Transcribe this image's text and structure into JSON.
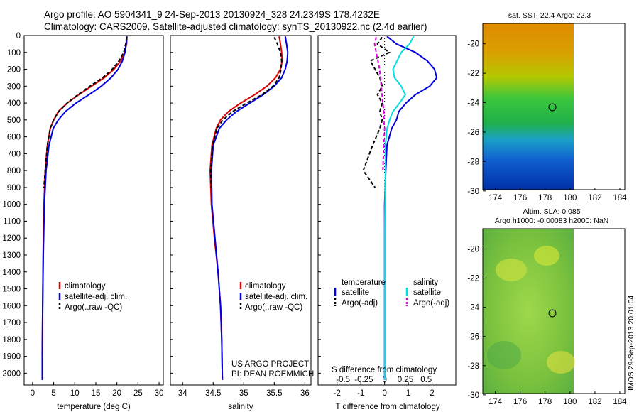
{
  "header": {
    "line1": "Argo profile: AO 5904341_9 24-Sep-2013 20130924_328 24.2349S 178.4232E",
    "line2": "Climatology: CARS2009. Satellite-adjusted climatology: synTS_20130922.nc (2.4d earlier)"
  },
  "sst_title": "sat. SST: 22.4 Argo: 22.3",
  "sla_title1": "Altim. SLA: 0.085",
  "sla_title2": "Argo h1000: -0.00083 h2000: NaN",
  "side_stamp": "IMOS 29-Sep-2013 20:01:04",
  "project": {
    "line1": "US ARGO PROJECT",
    "line2": "PI: DEAN ROEMMICH"
  },
  "depth_ticks": [
    "0",
    "100",
    "200",
    "300",
    "400",
    "500",
    "600",
    "700",
    "800",
    "900",
    "1000",
    "1100",
    "1200",
    "1300",
    "1400",
    "1500",
    "1600",
    "1700",
    "1800",
    "1900",
    "2000"
  ],
  "colors": {
    "climatology": "#e00000",
    "satellite": "#0000e0",
    "argo": "#000000",
    "sal_satellite": "#00e0e0",
    "sal_argo": "#e000e0"
  },
  "chart_data": [
    {
      "type": "line",
      "xlabel": "temperature (deg C)",
      "ylabel": "",
      "xlim": [
        -2,
        31
      ],
      "ylim": [
        2070,
        0
      ],
      "xticks": [
        "0",
        "5",
        "10",
        "15",
        "20",
        "25",
        "30"
      ],
      "legend": [
        "climatology",
        "satellite-adj. clim.",
        "Argo(..raw -QC)"
      ],
      "series": [
        {
          "name": "climatology",
          "x": [
            22.4,
            22.3,
            21.8,
            20.9,
            19.3,
            17,
            14,
            11,
            8.2,
            6.1,
            5,
            4.2,
            3.5,
            3,
            2.7,
            2.5,
            2.4,
            2.3,
            2.3
          ],
          "y": [
            5,
            50,
            100,
            150,
            200,
            250,
            300,
            350,
            400,
            450,
            500,
            550,
            650,
            800,
            1000,
            1300,
            1600,
            1900,
            2040
          ]
        },
        {
          "name": "satellite-adj. clim.",
          "x": [
            22.3,
            22.2,
            21.9,
            21.3,
            20.3,
            18.6,
            16.3,
            13.4,
            10.3,
            7.8,
            6.1,
            4.9,
            3.9,
            3.2,
            2.8,
            2.55,
            2.4,
            2.3,
            2.3
          ],
          "y": [
            5,
            50,
            100,
            150,
            200,
            250,
            300,
            350,
            400,
            450,
            500,
            550,
            650,
            800,
            1000,
            1300,
            1600,
            1900,
            2040
          ]
        },
        {
          "name": "Argo(..raw -QC)",
          "x": [
            22.3,
            22.1,
            21.6,
            20.5,
            18.9,
            16.6,
            13.6,
            10.8,
            8.2,
            6.2,
            5,
            4.2,
            3.5,
            3,
            2.7
          ],
          "y": [
            10,
            50,
            100,
            150,
            200,
            250,
            300,
            350,
            400,
            450,
            500,
            550,
            650,
            800,
            900
          ]
        }
      ]
    },
    {
      "type": "line",
      "xlabel": "salinity",
      "ylabel": "",
      "xlim": [
        33.8,
        36.1
      ],
      "ylim": [
        2070,
        0
      ],
      "xticks": [
        "34",
        "34.5",
        "35",
        "35.5",
        "36"
      ],
      "legend": [
        "climatology",
        "satellite-adj. clim.",
        "Argo(..raw -QC)"
      ],
      "series": [
        {
          "name": "climatology",
          "x": [
            35.58,
            35.6,
            35.62,
            35.63,
            35.6,
            35.52,
            35.38,
            35.18,
            34.95,
            34.75,
            34.62,
            34.55,
            34.48,
            34.45,
            34.47,
            34.52,
            34.58,
            34.62,
            34.64,
            34.65
          ],
          "y": [
            5,
            50,
            100,
            150,
            200,
            250,
            300,
            350,
            400,
            450,
            500,
            550,
            650,
            800,
            1000,
            1200,
            1400,
            1600,
            1800,
            2040
          ]
        },
        {
          "name": "satellite-adj. clim.",
          "x": [
            35.68,
            35.7,
            35.72,
            35.71,
            35.68,
            35.62,
            35.5,
            35.32,
            35.1,
            34.88,
            34.72,
            34.6,
            34.5,
            34.47,
            34.48,
            34.53,
            34.58,
            34.62,
            34.64,
            34.65
          ],
          "y": [
            5,
            50,
            100,
            150,
            200,
            250,
            300,
            350,
            400,
            450,
            500,
            550,
            650,
            800,
            1000,
            1200,
            1400,
            1600,
            1800,
            2040
          ]
        },
        {
          "name": "Argo(..raw -QC)",
          "x": [
            35.5,
            35.55,
            35.6,
            35.62,
            35.61,
            35.58,
            35.48,
            35.3,
            35.05,
            34.82,
            34.66,
            34.56,
            34.49,
            34.46,
            34.47
          ],
          "y": [
            10,
            50,
            100,
            150,
            200,
            250,
            300,
            350,
            400,
            450,
            500,
            550,
            650,
            800,
            900
          ]
        }
      ]
    },
    {
      "type": "line",
      "xlabel": "T difference from climatology",
      "xlabel2": "S difference from climatology",
      "ylabel": "",
      "xlim": [
        -2.8,
        3
      ],
      "ylim": [
        2070,
        0
      ],
      "xticks": [
        "-2",
        "-1",
        "0",
        "1",
        "2"
      ],
      "xticks2": [
        "-0.5",
        "-0.25",
        "0",
        "0.25",
        "0.5"
      ],
      "legend_left": {
        "title": "temperature",
        "items": [
          "satellite",
          "Argo(-adj)"
        ]
      },
      "legend_right": {
        "title": "salinity",
        "items": [
          "satellite",
          "Argo(-adj)"
        ]
      },
      "series": [
        {
          "name": "temperature satellite",
          "x": [
            0.1,
            0.5,
            1.3,
            1.8,
            2.1,
            2.2,
            1.9,
            1.3,
            0.9,
            0.6,
            0.5,
            0.3,
            0.1,
            0.05,
            0,
            0,
            0
          ],
          "y": [
            5,
            50,
            100,
            150,
            200,
            250,
            300,
            350,
            400,
            450,
            500,
            550,
            650,
            800,
            1000,
            1500,
            2040
          ]
        },
        {
          "name": "temperature Argo(-adj)",
          "x": [
            -0.1,
            -0.3,
            0.2,
            -0.6,
            -0.4,
            -0.2,
            -0.1,
            -0.3,
            -0.1,
            -0.2,
            -0.1,
            -0.2,
            -0.5,
            -0.9,
            -0.4
          ],
          "y": [
            10,
            50,
            100,
            150,
            200,
            250,
            300,
            350,
            400,
            450,
            500,
            550,
            650,
            800,
            900
          ]
        },
        {
          "name": "salinity satellite",
          "x": [
            0.35,
            0.3,
            0.2,
            0.15,
            0.1,
            0.12,
            0.2,
            0.25,
            0.18,
            0.1,
            0.06,
            0.03,
            0.01,
            0.01,
            0,
            0
          ],
          "y": [
            5,
            50,
            100,
            150,
            200,
            250,
            300,
            350,
            400,
            450,
            500,
            550,
            650,
            800,
            1200,
            2040
          ]
        },
        {
          "name": "salinity Argo(-adj)",
          "x": [
            -0.1,
            -0.12,
            -0.1,
            -0.08,
            -0.06,
            -0.05,
            -0.04,
            -0.03,
            -0.02,
            -0.01,
            -0.01,
            0,
            -0.01,
            -0.02
          ],
          "y": [
            10,
            50,
            100,
            150,
            200,
            250,
            300,
            350,
            400,
            450,
            500,
            550,
            650,
            800
          ]
        }
      ]
    }
  ],
  "maps": {
    "lon_ticks": [
      "174",
      "176",
      "178",
      "180",
      "182",
      "184"
    ],
    "lat_ticks": [
      "-20",
      "-22",
      "-24",
      "-26",
      "-28",
      "-30"
    ]
  }
}
